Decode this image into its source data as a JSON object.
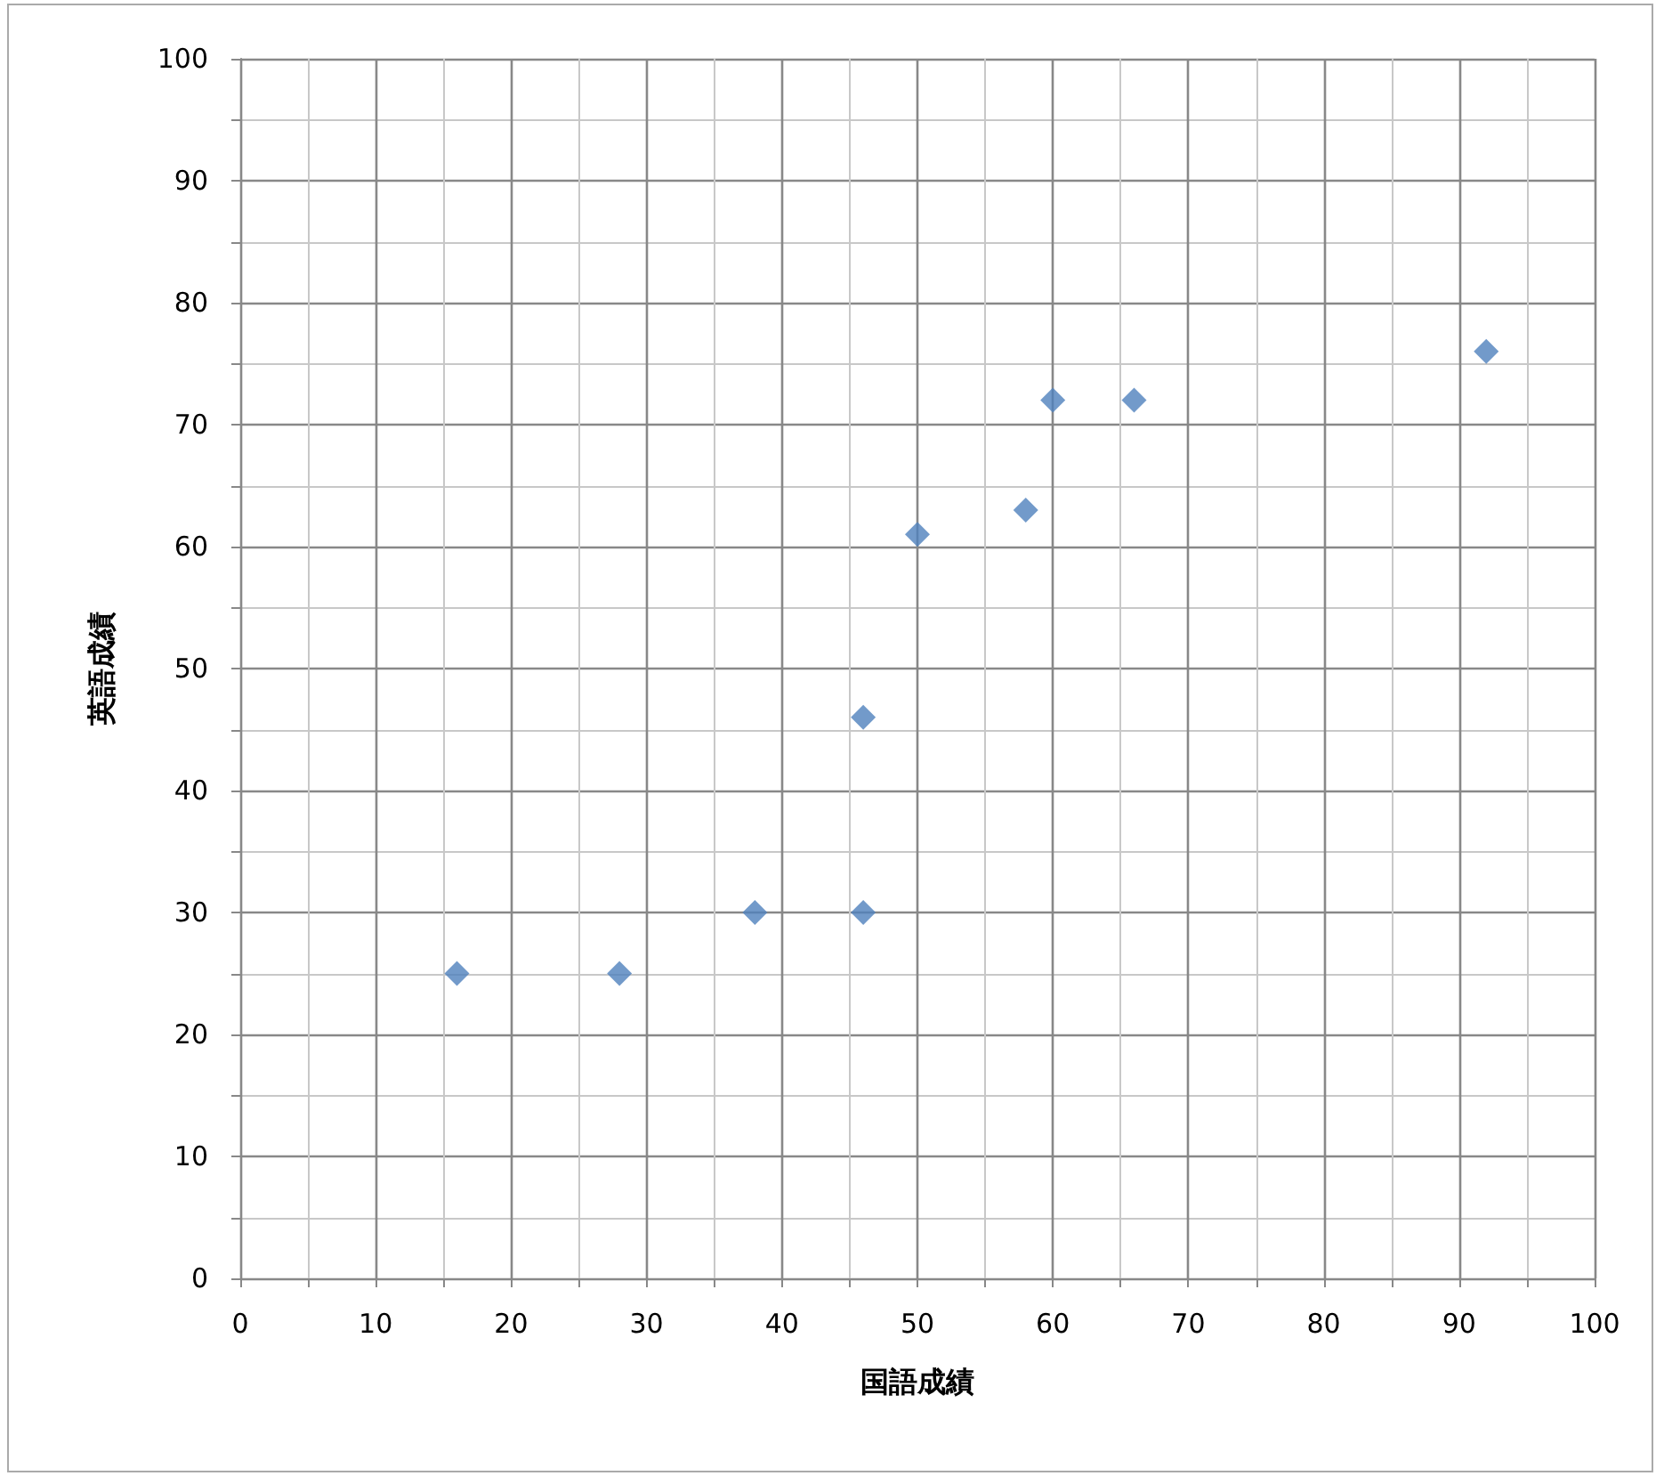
{
  "chart_data": {
    "type": "scatter",
    "xlabel": "国語成績",
    "ylabel": "英語成績",
    "x": [
      16,
      28,
      38,
      46,
      46,
      50,
      58,
      60,
      66,
      92
    ],
    "series": [
      {
        "color": "#4f81bd",
        "values": [
          25,
          25,
          30,
          30,
          46,
          61,
          63,
          72,
          72,
          76
        ]
      }
    ],
    "xlim": [
      0,
      100
    ],
    "xticks": [
      0,
      10,
      20,
      30,
      40,
      50,
      60,
      70,
      80,
      90,
      100
    ],
    "ylim": [
      0,
      100
    ],
    "yticks": [
      0,
      10,
      20,
      30,
      40,
      50,
      60,
      70,
      80,
      90,
      100
    ],
    "grid": true,
    "marker": "diamond"
  }
}
